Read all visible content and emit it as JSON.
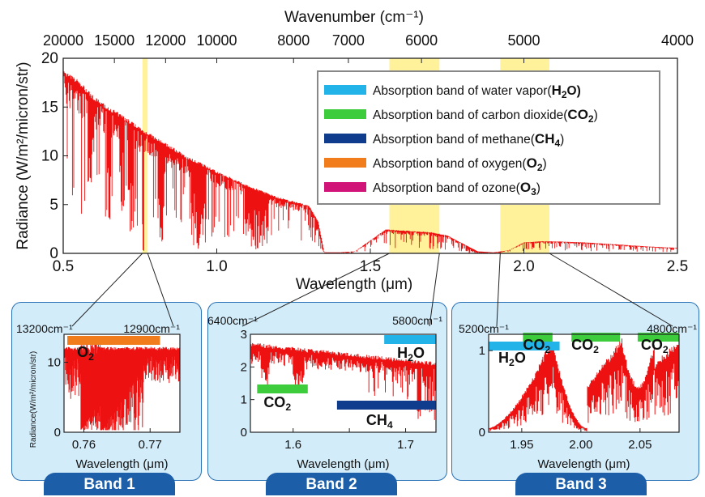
{
  "colors": {
    "spectrum": "#ee1111",
    "highlight": "#fff29a",
    "panel_bg": "#d3ecfa",
    "panel_border": "#2a72b5",
    "tab_bg": "#1d5ea8",
    "h2o": "#22b4e8",
    "co2": "#3ccc3c",
    "ch4": "#0f3c8c",
    "o2": "#f07c1c",
    "o3": "#d01478"
  },
  "chart_data": [
    {
      "type": "line",
      "name": "main",
      "ylabel": "Radiance (W/m²/micron/str)",
      "xlabel": "Wavelength",
      "xlabel_unit": "(μm)",
      "top_axis_label": "Wavenumber  (cm⁻¹)",
      "top_ticks": [
        20000,
        15000,
        12000,
        10000,
        8000,
        7000,
        6000,
        5000,
        4000
      ],
      "top_tick_labels": [
        "20000",
        "15000",
        "12000",
        "10000",
        "8000",
        "7000",
        "6000",
        "5000",
        "4000"
      ],
      "xlim": [
        0.5,
        2.5
      ],
      "ylim": [
        0,
        20
      ],
      "xticks": [
        0.5,
        1.0,
        1.5,
        2.0,
        2.5
      ],
      "xtick_labels": [
        "0.5",
        "1.0",
        "1.5",
        "2.0",
        "2.5"
      ],
      "yticks": [
        0,
        5,
        10,
        15,
        20
      ],
      "ytick_labels": [
        "0",
        "5",
        "10",
        "15",
        "20"
      ],
      "highlight_bands": [
        [
          0.758,
          0.775
        ],
        [
          1.562,
          1.725
        ],
        [
          1.923,
          2.083
        ]
      ],
      "legend_position": "top-right",
      "legend": [
        {
          "color": "#22b4e8",
          "label": "Absorption band of water vapor(",
          "formula": "H",
          "sub": "2",
          "tail": "O)"
        },
        {
          "color": "#3ccc3c",
          "label": "Absorption band of carbon dioxide(",
          "formula": "CO",
          "sub": "2",
          "tail": ")"
        },
        {
          "color": "#0f3c8c",
          "label": "Absorption band of methane(",
          "formula": "CH",
          "sub": "4",
          "tail": ")"
        },
        {
          "color": "#f07c1c",
          "label": "Absorption band of oxygen(",
          "formula": "O",
          "sub": "2",
          "tail": ")"
        },
        {
          "color": "#d01478",
          "label": "Absorption band of ozone(",
          "formula": "O",
          "sub": "3",
          "tail": ")"
        }
      ],
      "series_envelope": {
        "x": [
          0.5,
          0.55,
          0.6,
          0.65,
          0.7,
          0.75,
          0.8,
          0.85,
          0.9,
          0.95,
          1.0,
          1.05,
          1.1,
          1.15,
          1.2,
          1.25,
          1.3,
          1.33,
          1.35,
          1.4,
          1.45,
          1.5,
          1.55,
          1.6,
          1.65,
          1.7,
          1.75,
          1.8,
          1.85,
          1.9,
          1.95,
          2.0,
          2.05,
          2.1,
          2.2,
          2.3,
          2.4,
          2.5
        ],
        "y": [
          18.2,
          17.3,
          15.6,
          14.6,
          13.6,
          12.6,
          11.6,
          10.7,
          9.7,
          9.0,
          8.2,
          7.5,
          6.8,
          6.2,
          5.6,
          5.2,
          4.8,
          3.2,
          0.1,
          0.1,
          0.2,
          1.3,
          2.4,
          2.3,
          2.2,
          2.1,
          1.8,
          1.0,
          0.2,
          0.1,
          0.3,
          1.1,
          1.2,
          1.2,
          1.1,
          0.9,
          0.7,
          0.55
        ]
      }
    },
    {
      "type": "line",
      "name": "band1",
      "ylabel": "Radiance(W/m²/micron/str)",
      "xlabel": "Wavelength",
      "xlabel_unit": "(μm)",
      "xlim": [
        0.757,
        0.7745
      ],
      "ylim": [
        0,
        14
      ],
      "xticks": [
        0.76,
        0.77
      ],
      "xtick_labels": [
        "0.76",
        "0.77"
      ],
      "yticks": [
        0,
        10
      ],
      "ytick_labels": [
        "0",
        "10"
      ],
      "left_wavenumber": "13200cm⁻¹",
      "right_wavenumber": "12900cm⁻¹",
      "bars": [
        {
          "color": "#f07c1c",
          "formula": "O",
          "sub": "2",
          "x0": 0.7575,
          "x1": 0.7715
        }
      ]
    },
    {
      "type": "line",
      "name": "band2",
      "xlabel": "Wavelength",
      "xlabel_unit": "(μm)",
      "xlim": [
        1.562,
        1.727
      ],
      "ylim": [
        0,
        3
      ],
      "xticks": [
        1.6,
        1.65,
        1.7
      ],
      "xtick_labels": [
        "1.6",
        "",
        "1.7"
      ],
      "yticks": [
        0,
        1,
        2,
        3
      ],
      "ytick_labels": [
        "0",
        "1",
        "2",
        "3"
      ],
      "left_wavenumber": "6400cm⁻¹",
      "right_wavenumber": "5800cm⁻¹",
      "bars": [
        {
          "color": "#22b4e8",
          "formula": "H",
          "sub": "2",
          "tail": "O",
          "x0": 1.681,
          "x1": 1.727
        },
        {
          "color": "#3ccc3c",
          "formula": "CO",
          "sub": "2",
          "x0": 1.568,
          "x1": 1.613
        },
        {
          "color": "#0f3c8c",
          "formula": "CH",
          "sub": "4",
          "x0": 1.639,
          "x1": 1.727
        }
      ]
    },
    {
      "type": "line",
      "name": "band3",
      "xlabel": "Wavelength",
      "xlabel_unit": "(μm)",
      "xlim": [
        1.922,
        2.083
      ],
      "ylim": [
        0,
        1.2
      ],
      "xticks": [
        1.95,
        2.0,
        2.05
      ],
      "xtick_labels": [
        "1.95",
        "2.00",
        "2.05"
      ],
      "yticks": [
        0,
        1
      ],
      "ytick_labels": [
        "0",
        "1"
      ],
      "left_wavenumber": "5200cm⁻¹",
      "right_wavenumber": "4800cm⁻¹",
      "bars": [
        {
          "color": "#22b4e8",
          "formula": "H",
          "sub": "2",
          "tail": "O",
          "x0": 1.922,
          "x1": 1.982
        },
        {
          "color": "#3ccc3c",
          "formula": "CO",
          "sub": "2",
          "x0": 1.951,
          "x1": 1.976
        },
        {
          "color": "#3ccc3c",
          "formula": "CO",
          "sub": "2",
          "x0": 1.992,
          "x1": 2.033
        },
        {
          "color": "#3ccc3c",
          "formula": "CO",
          "sub": "2",
          "x0": 2.048,
          "x1": 2.083
        }
      ]
    }
  ],
  "bands": {
    "band1": "Band 1",
    "band2": "Band 2",
    "band3": "Band 3"
  }
}
